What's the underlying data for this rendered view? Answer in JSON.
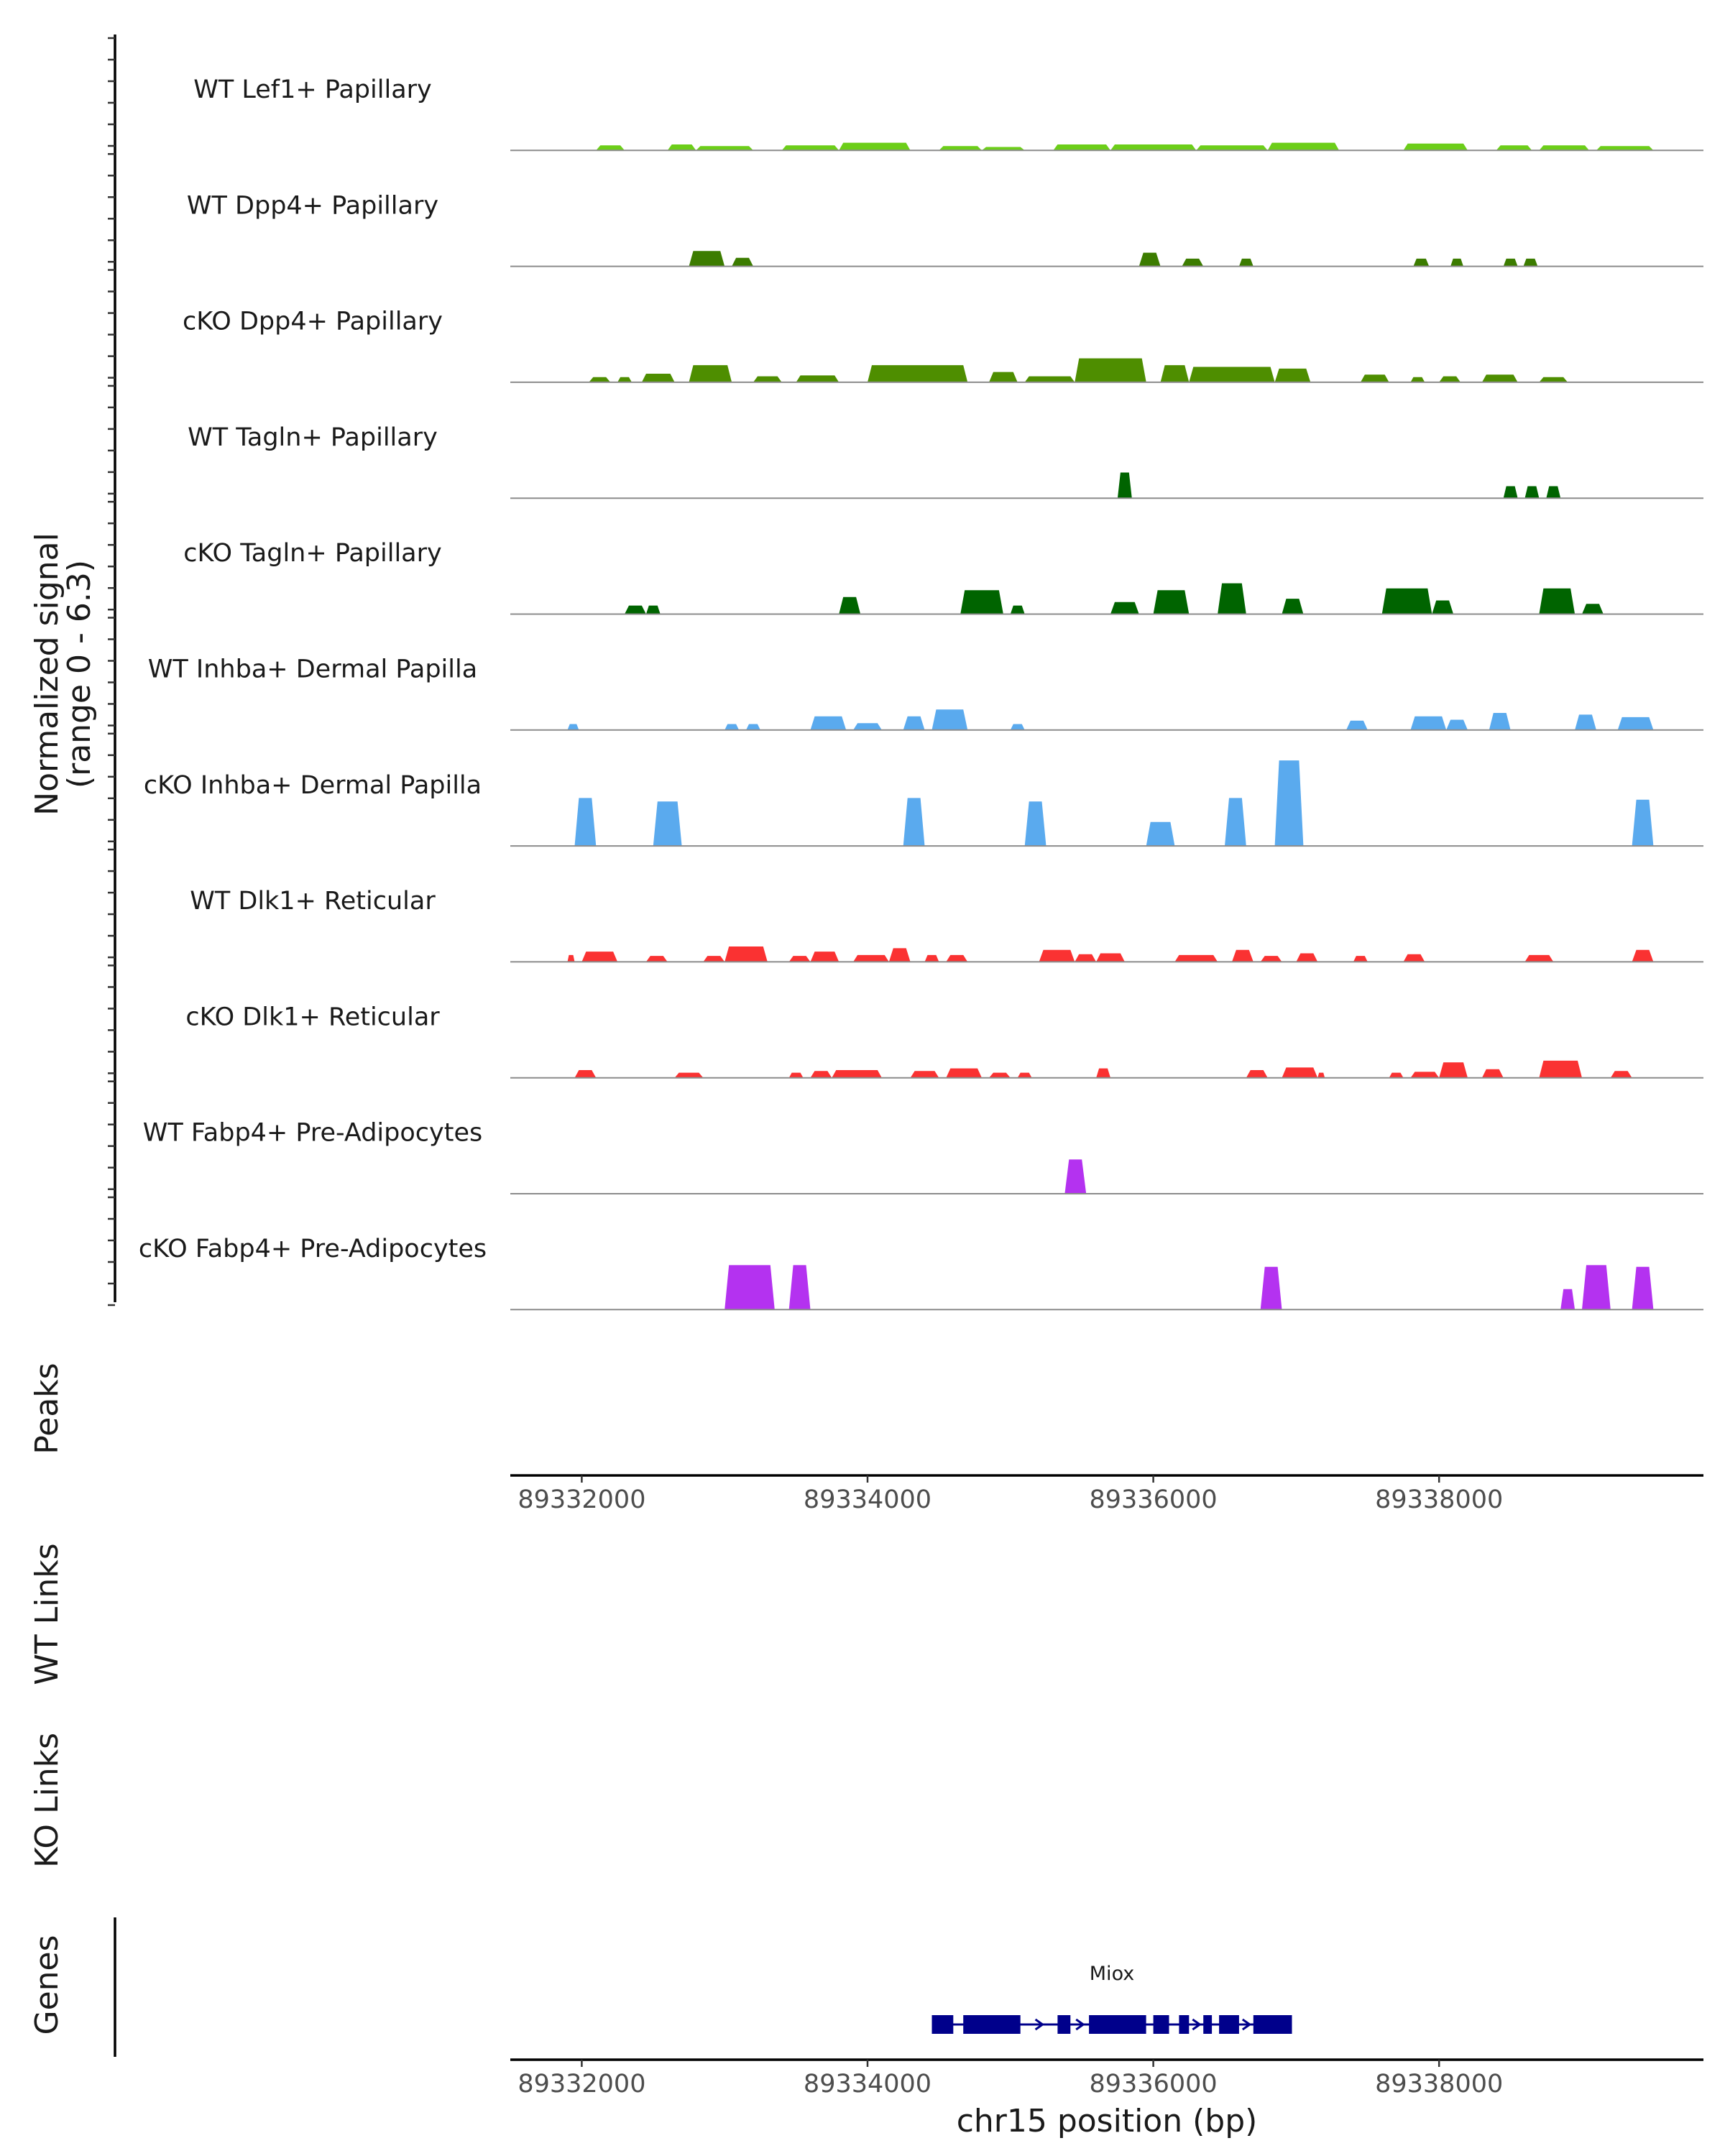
{
  "chart_data": {
    "type": "area",
    "title": "",
    "chromosome": "chr15",
    "xlim": [
      89331500,
      89339850
    ],
    "ylim": [
      0,
      6.3
    ],
    "coverage_ylabel": "Normalized signal",
    "coverage_ylabel_range": "(range 0 - 6.3)",
    "xlabel": "chr15 position (bp)",
    "xticks": [
      89332000,
      89334000,
      89336000,
      89338000
    ],
    "xtick_labels": [
      "89332000",
      "89334000",
      "89336000",
      "89338000"
    ],
    "track_labels": {
      "peaks": "Peaks",
      "wt_links": "WT Links",
      "ko_links": "KO Links",
      "genes": "Genes"
    },
    "tracks": [
      {
        "name": "WT Lef1+ Papillary",
        "color": "#6CCE19",
        "regions": [
          [
            89332100,
            89332300,
            0.3
          ],
          [
            89332600,
            89332800,
            0.35
          ],
          [
            89332800,
            89333200,
            0.25
          ],
          [
            89333400,
            89333800,
            0.3
          ],
          [
            89333800,
            89334300,
            0.45
          ],
          [
            89334500,
            89334800,
            0.25
          ],
          [
            89334800,
            89335100,
            0.2
          ],
          [
            89335300,
            89335700,
            0.35
          ],
          [
            89335700,
            89336300,
            0.35
          ],
          [
            89336300,
            89336800,
            0.3
          ],
          [
            89336800,
            89337300,
            0.45
          ],
          [
            89337750,
            89338200,
            0.4
          ],
          [
            89338400,
            89338650,
            0.3
          ],
          [
            89338700,
            89339050,
            0.3
          ],
          [
            89339100,
            89339500,
            0.25
          ]
        ]
      },
      {
        "name": "WT Dpp4+ Papillary",
        "color": "#3C7C00",
        "regions": [
          [
            89332750,
            89333000,
            0.9
          ],
          [
            89333050,
            89333200,
            0.5
          ],
          [
            89335900,
            89336050,
            0.8
          ],
          [
            89336200,
            89336350,
            0.45
          ],
          [
            89336600,
            89336700,
            0.45
          ],
          [
            89337820,
            89337930,
            0.45
          ],
          [
            89338080,
            89338170,
            0.45
          ],
          [
            89338450,
            89338550,
            0.45
          ],
          [
            89338590,
            89338690,
            0.45
          ]
        ]
      },
      {
        "name": "cKO Dpp4+ Papillary",
        "color": "#4E8E00",
        "regions": [
          [
            89332050,
            89332200,
            0.3
          ],
          [
            89332250,
            89332350,
            0.3
          ],
          [
            89332420,
            89332650,
            0.5
          ],
          [
            89332750,
            89333050,
            1.0
          ],
          [
            89333200,
            89333400,
            0.35
          ],
          [
            89333500,
            89333800,
            0.4
          ],
          [
            89334000,
            89334700,
            1.0
          ],
          [
            89334850,
            89335050,
            0.6
          ],
          [
            89335100,
            89335450,
            0.35
          ],
          [
            89335450,
            89335950,
            1.4
          ],
          [
            89336050,
            89336250,
            1.0
          ],
          [
            89336250,
            89336850,
            0.9
          ],
          [
            89336850,
            89337100,
            0.8
          ],
          [
            89337450,
            89337650,
            0.45
          ],
          [
            89337800,
            89337900,
            0.3
          ],
          [
            89338000,
            89338150,
            0.35
          ],
          [
            89338300,
            89338550,
            0.45
          ],
          [
            89338700,
            89338900,
            0.3
          ]
        ]
      },
      {
        "name": "WT Tagln+ Papillary",
        "color": "#006400",
        "regions": [
          [
            89335750,
            89335850,
            1.5
          ],
          [
            89338450,
            89338550,
            0.7
          ],
          [
            89338600,
            89338700,
            0.7
          ],
          [
            89338750,
            89338850,
            0.7
          ]
        ]
      },
      {
        "name": "cKO Tagln+ Papillary",
        "color": "#006400",
        "regions": [
          [
            89332300,
            89332450,
            0.5
          ],
          [
            89332450,
            89332550,
            0.5
          ],
          [
            89333800,
            89333950,
            1.0
          ],
          [
            89334650,
            89334950,
            1.4
          ],
          [
            89335000,
            89335100,
            0.5
          ],
          [
            89335700,
            89335900,
            0.7
          ],
          [
            89336000,
            89336250,
            1.4
          ],
          [
            89336450,
            89336650,
            1.8
          ],
          [
            89336900,
            89337050,
            0.9
          ],
          [
            89337600,
            89337950,
            1.5
          ],
          [
            89337950,
            89338100,
            0.8
          ],
          [
            89338700,
            89338950,
            1.5
          ],
          [
            89339000,
            89339150,
            0.6
          ]
        ]
      },
      {
        "name": "WT Inhba+ Dermal Papilla",
        "color": "#5AAAEE",
        "regions": [
          [
            89331900,
            89331980,
            0.35
          ],
          [
            89333000,
            89333100,
            0.35
          ],
          [
            89333150,
            89333250,
            0.35
          ],
          [
            89333600,
            89333850,
            0.8
          ],
          [
            89333900,
            89334100,
            0.4
          ],
          [
            89334250,
            89334400,
            0.8
          ],
          [
            89334450,
            89334700,
            1.2
          ],
          [
            89335000,
            89335100,
            0.35
          ],
          [
            89337350,
            89337500,
            0.55
          ],
          [
            89337800,
            89338050,
            0.8
          ],
          [
            89338050,
            89338200,
            0.6
          ],
          [
            89338350,
            89338500,
            1.0
          ],
          [
            89338950,
            89339100,
            0.9
          ],
          [
            89339250,
            89339500,
            0.75
          ]
        ]
      },
      {
        "name": "cKO Inhba+ Dermal Papilla",
        "color": "#5AAAEE",
        "regions": [
          [
            89331950,
            89332100,
            2.8
          ],
          [
            89332500,
            89332700,
            2.6
          ],
          [
            89334250,
            89334400,
            2.8
          ],
          [
            89335100,
            89335250,
            2.6
          ],
          [
            89335950,
            89336150,
            1.4
          ],
          [
            89336500,
            89336650,
            2.8
          ],
          [
            89336850,
            89337050,
            5.0
          ],
          [
            89339350,
            89339500,
            2.7
          ]
        ]
      },
      {
        "name": "WT Dlk1+ Reticular",
        "color": "#FA3232",
        "regions": [
          [
            89331900,
            89331950,
            0.4
          ],
          [
            89332000,
            89332250,
            0.6
          ],
          [
            89332450,
            89332600,
            0.35
          ],
          [
            89332850,
            89333000,
            0.35
          ],
          [
            89333000,
            89333300,
            0.9
          ],
          [
            89333450,
            89333600,
            0.35
          ],
          [
            89333600,
            89333800,
            0.6
          ],
          [
            89333900,
            89334150,
            0.4
          ],
          [
            89334150,
            89334300,
            0.8
          ],
          [
            89334400,
            89334500,
            0.4
          ],
          [
            89334550,
            89334700,
            0.4
          ],
          [
            89335200,
            89335450,
            0.7
          ],
          [
            89335450,
            89335600,
            0.45
          ],
          [
            89335600,
            89335800,
            0.5
          ],
          [
            89336150,
            89336450,
            0.4
          ],
          [
            89336550,
            89336700,
            0.7
          ],
          [
            89336750,
            89336900,
            0.35
          ],
          [
            89337000,
            89337150,
            0.5
          ],
          [
            89337400,
            89337500,
            0.35
          ],
          [
            89337750,
            89337900,
            0.45
          ],
          [
            89338600,
            89338800,
            0.4
          ],
          [
            89339350,
            89339500,
            0.7
          ]
        ]
      },
      {
        "name": "cKO Dlk1+ Reticular",
        "color": "#FA3232",
        "regions": [
          [
            89331950,
            89332100,
            0.45
          ],
          [
            89332650,
            89332850,
            0.3
          ],
          [
            89333450,
            89333550,
            0.3
          ],
          [
            89333600,
            89333750,
            0.4
          ],
          [
            89333750,
            89334100,
            0.45
          ],
          [
            89334300,
            89334500,
            0.4
          ],
          [
            89334550,
            89334800,
            0.55
          ],
          [
            89334850,
            89335000,
            0.3
          ],
          [
            89335050,
            89335150,
            0.3
          ],
          [
            89335600,
            89335700,
            0.55
          ],
          [
            89336650,
            89336800,
            0.45
          ],
          [
            89336900,
            89337150,
            0.6
          ],
          [
            89337150,
            89337200,
            0.3
          ],
          [
            89337650,
            89337750,
            0.3
          ],
          [
            89337800,
            89338000,
            0.35
          ],
          [
            89338000,
            89338200,
            0.9
          ],
          [
            89338300,
            89338450,
            0.5
          ],
          [
            89338700,
            89339000,
            1.0
          ],
          [
            89339200,
            89339350,
            0.4
          ]
        ]
      },
      {
        "name": "WT Fabp4+ Pre-Adipocytes",
        "color": "#B432F0",
        "regions": [
          [
            89335380,
            89335530,
            2.0
          ]
        ]
      },
      {
        "name": "cKO Fabp4+ Pre-Adipocytes",
        "color": "#B432F0",
        "regions": [
          [
            89333000,
            89333350,
            2.6
          ],
          [
            89333450,
            89333600,
            2.6
          ],
          [
            89336750,
            89336900,
            2.5
          ],
          [
            89338850,
            89338950,
            1.2
          ],
          [
            89339000,
            89339200,
            2.6
          ],
          [
            89339350,
            89339500,
            2.5
          ]
        ]
      }
    ],
    "genes": [
      {
        "name": "Miox",
        "start": 89334450,
        "end": 89336970,
        "color": "#00008B",
        "exons": [
          [
            89334450,
            89334600
          ],
          [
            89334670,
            89335070
          ],
          [
            89335330,
            89335420
          ],
          [
            89335550,
            89335950
          ],
          [
            89336000,
            89336110
          ],
          [
            89336180,
            89336250
          ],
          [
            89336350,
            89336410
          ],
          [
            89336460,
            89336600
          ],
          [
            89336700,
            89336970
          ]
        ]
      }
    ]
  }
}
